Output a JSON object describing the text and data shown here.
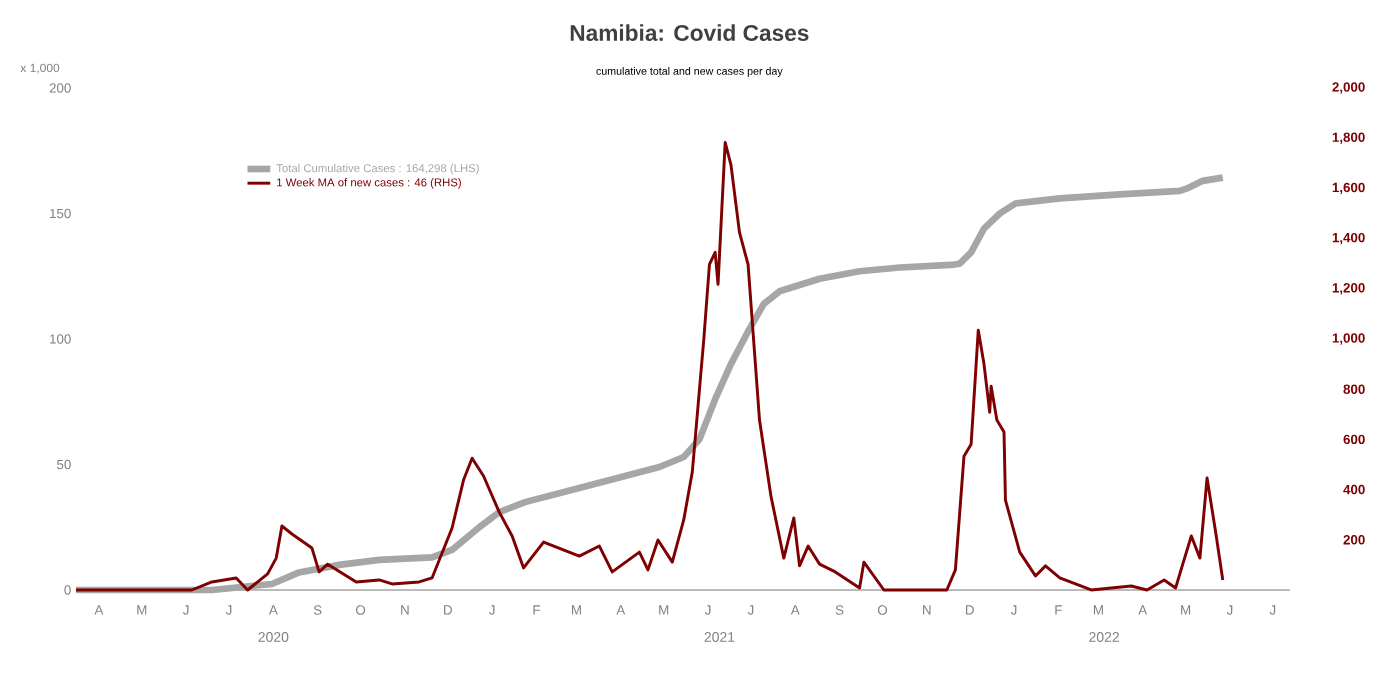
{
  "chart_data": {
    "type": "line",
    "title": "Namibia: Covid Cases",
    "subtitle": "cumulative total and new cases per day",
    "ylabel": "x 1,000",
    "xlim": [
      "2020-03-30",
      "2022-07-27"
    ],
    "xticks": [
      {
        "value": "2020-08-15",
        "label": "2020"
      },
      {
        "value": "2021-06-23",
        "label": "2021"
      },
      {
        "value": "2022-03-19",
        "label": "2022"
      }
    ],
    "annotations": [
      "A",
      "M",
      "J",
      "J",
      "A",
      "S",
      "O",
      "N",
      "D",
      "J",
      "F",
      "M",
      "A",
      "M",
      "J",
      "J",
      "A",
      "S",
      "O",
      "N",
      "D",
      "J",
      "F",
      "M",
      "A",
      "M",
      "J",
      "J"
    ],
    "ylim": [
      0,
      200
    ],
    "yticks": [
      0,
      50,
      100,
      150,
      200
    ],
    "y2lim": [
      0,
      2000
    ],
    "y2ticks": [
      200,
      400,
      600,
      800,
      {
        "value": 1000,
        "label": "1,000"
      },
      {
        "value": 1200,
        "label": "1,200"
      },
      {
        "value": 1400,
        "label": "1,400"
      },
      {
        "value": 1600,
        "label": "1,600"
      },
      {
        "value": 1800,
        "label": "1,800"
      },
      {
        "value": 2000,
        "label": "2,000"
      }
    ],
    "legend": "top left",
    "series": [
      {
        "name": "Total Cumulative Cases : 164,298 (LHS)",
        "color": "#a6a6a6",
        "axis": "y",
        "x": [
          "2020-03-30",
          "2020-07-03",
          "2020-08-14",
          "2020-09-02",
          "2020-09-30",
          "2020-10-28",
          "2020-12-04",
          "2020-12-18",
          "2021-01-06",
          "2021-01-20",
          "2021-02-07",
          "2021-03-17",
          "2021-05-12",
          "2021-05-29",
          "2021-06-09",
          "2021-06-20",
          "2021-07-01",
          "2021-07-13",
          "2021-07-24",
          "2021-08-04",
          "2021-09-01",
          "2021-09-29",
          "2021-10-27",
          "2021-12-02",
          "2021-12-08",
          "2021-12-16",
          "2021-12-25",
          "2022-01-05",
          "2022-01-16",
          "2022-02-16",
          "2022-03-30",
          "2022-05-11",
          "2022-05-16",
          "2022-05-27",
          "2022-06-10"
        ],
        "values": [
          0,
          0,
          2.4,
          7,
          10,
          12,
          13,
          16,
          25,
          31,
          35,
          40.6,
          49,
          53,
          60,
          76,
          90,
          103,
          114,
          119,
          124,
          127,
          128.5,
          129.5,
          130,
          134.5,
          144,
          150,
          154,
          156,
          157.6,
          159,
          160,
          163,
          164.3
        ]
      },
      {
        "name": "1 Week MA of new cases : 46 (RHS)",
        "color": "#7f0000",
        "axis": "y2",
        "x": [
          "2020-03-30",
          "2020-06-19",
          "2020-07-03",
          "2020-07-20",
          "2020-07-28",
          "2020-08-11",
          "2020-08-17",
          "2020-08-21",
          "2020-08-28",
          "2020-09-11",
          "2020-09-16",
          "2020-09-22",
          "2020-10-12",
          "2020-10-28",
          "2020-11-06",
          "2020-11-25",
          "2020-12-04",
          "2020-12-18",
          "2020-12-26",
          "2021-01-01",
          "2021-01-09",
          "2021-01-20",
          "2021-01-29",
          "2021-02-06",
          "2021-02-20",
          "2021-03-17",
          "2021-03-31",
          "2021-04-09",
          "2021-04-28",
          "2021-05-04",
          "2021-05-11",
          "2021-05-21",
          "2021-05-29",
          "2021-06-04",
          "2021-06-12",
          "2021-06-16",
          "2021-06-20",
          "2021-06-22",
          "2021-06-27",
          "2021-07-01",
          "2021-07-07",
          "2021-07-13",
          "2021-07-21",
          "2021-07-29",
          "2021-08-07",
          "2021-08-14",
          "2021-08-18",
          "2021-08-24",
          "2021-09-01",
          "2021-09-12",
          "2021-09-29",
          "2021-10-02",
          "2021-10-16",
          "2021-11-29",
          "2021-12-05",
          "2021-12-11",
          "2021-12-16",
          "2021-12-21",
          "2021-12-25",
          "2021-12-29",
          "2021-12-30",
          "2022-01-03",
          "2022-01-08",
          "2022-01-09",
          "2022-01-19",
          "2022-01-30",
          "2022-02-06",
          "2022-02-16",
          "2022-03-10",
          "2022-04-07",
          "2022-04-18",
          "2022-04-30",
          "2022-05-08",
          "2022-05-13",
          "2022-05-19",
          "2022-05-25",
          "2022-05-30",
          "2022-06-05",
          "2022-06-10"
        ],
        "values": [
          0,
          0,
          32,
          48,
          0,
          64,
          127,
          255,
          223,
          167,
          72,
          103,
          32,
          40,
          24,
          32,
          48,
          247,
          438,
          525,
          454,
          310,
          215,
          88,
          191,
          135,
          175,
          72,
          151,
          80,
          199,
          111,
          279,
          470,
          995,
          1297,
          1345,
          1218,
          1783,
          1695,
          1425,
          1297,
          677,
          374,
          127,
          287,
          96,
          175,
          103,
          72,
          8,
          111,
          0,
          0,
          80,
          533,
          581,
          1035,
          900,
          708,
          812,
          677,
          629,
          358,
          151,
          56,
          96,
          48,
          0,
          16,
          0,
          40,
          8,
          103,
          215,
          127,
          446,
          231,
          40
        ]
      }
    ]
  }
}
